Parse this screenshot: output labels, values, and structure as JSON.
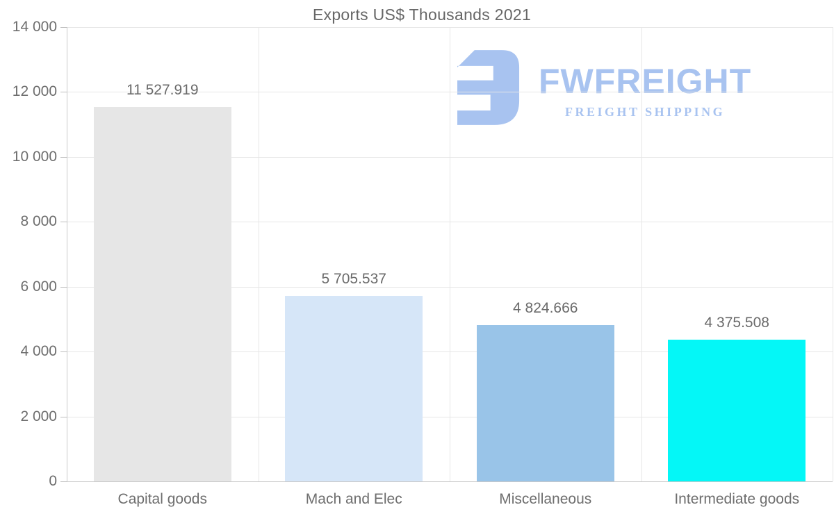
{
  "title": "Exports US$ Thousands 2021",
  "logo": {
    "name": "FWFREIGHT",
    "tagline": "FREIGHT SHIPPING",
    "color": "#a8c3f0"
  },
  "chart_data": {
    "type": "bar",
    "title": "Exports US$ Thousands 2021",
    "categories": [
      "Capital goods",
      "Mach and Elec",
      "Miscellaneous",
      "Intermediate goods"
    ],
    "values": [
      11527.919,
      5705.537,
      4824.666,
      4375.508
    ],
    "value_labels": [
      "11 527.919",
      "5 705.537",
      "4 824.666",
      "4 375.508"
    ],
    "bar_colors": [
      "#e6e6e6",
      "#d6e6f8",
      "#99c4e8",
      "#04f7f7"
    ],
    "xlabel": "",
    "ylabel": "",
    "ylim": [
      0,
      14000
    ],
    "ytick_step": 2000,
    "ytick_labels": [
      "0",
      "2 000",
      "4 000",
      "6 000",
      "8 000",
      "10 000",
      "12 000",
      "14 000"
    ],
    "grid": true,
    "legend_position": "none"
  },
  "style": {
    "gridline_color": "#e6e6e6",
    "axis_color": "#c9c9c9",
    "label_color": "#6e6e6e",
    "title_color": "#666666"
  }
}
